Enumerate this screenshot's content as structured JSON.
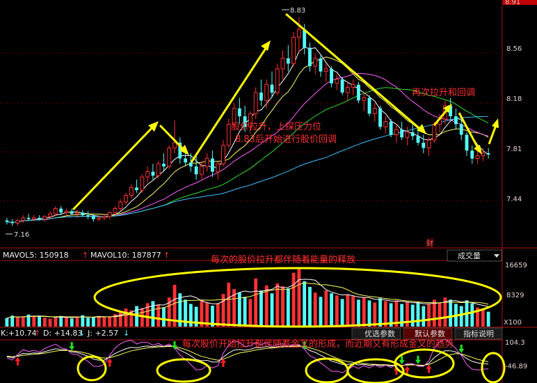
{
  "chart_data": [
    {
      "type": "candlestick",
      "panel": "price",
      "y_ticks": [
        "8.56",
        "8.18",
        "7.81",
        "7.44"
      ],
      "top_tick": "8.91",
      "high_label": "8.83",
      "low_label": "7.16",
      "ylim": [
        7.14,
        8.92
      ],
      "candles": [
        [
          7.29,
          7.31,
          7.26,
          7.28
        ],
        [
          7.28,
          7.3,
          7.25,
          7.27
        ],
        [
          7.27,
          7.3,
          7.25,
          7.29
        ],
        [
          7.29,
          7.33,
          7.27,
          7.31
        ],
        [
          7.31,
          7.34,
          7.29,
          7.3
        ],
        [
          7.3,
          7.33,
          7.28,
          7.31
        ],
        [
          7.31,
          7.33,
          7.29,
          7.3
        ],
        [
          7.3,
          7.33,
          7.28,
          7.32
        ],
        [
          7.32,
          7.36,
          7.3,
          7.34
        ],
        [
          7.34,
          7.4,
          7.32,
          7.38
        ],
        [
          7.38,
          7.4,
          7.33,
          7.35
        ],
        [
          7.35,
          7.38,
          7.32,
          7.36
        ],
        [
          7.36,
          7.38,
          7.33,
          7.34
        ],
        [
          7.34,
          7.37,
          7.31,
          7.35
        ],
        [
          7.35,
          7.37,
          7.32,
          7.33
        ],
        [
          7.33,
          7.36,
          7.3,
          7.32
        ],
        [
          7.32,
          7.34,
          7.28,
          7.3
        ],
        [
          7.3,
          7.33,
          7.28,
          7.31
        ],
        [
          7.31,
          7.34,
          7.29,
          7.32
        ],
        [
          7.32,
          7.36,
          7.3,
          7.35
        ],
        [
          7.35,
          7.4,
          7.33,
          7.38
        ],
        [
          7.38,
          7.45,
          7.36,
          7.43
        ],
        [
          7.43,
          7.5,
          7.41,
          7.48
        ],
        [
          7.48,
          7.56,
          7.46,
          7.54
        ],
        [
          7.54,
          7.6,
          7.5,
          7.52
        ],
        [
          7.52,
          7.64,
          7.5,
          7.62
        ],
        [
          7.62,
          7.7,
          7.58,
          7.66
        ],
        [
          7.66,
          7.72,
          7.6,
          7.63
        ],
        [
          7.63,
          7.74,
          7.61,
          7.72
        ],
        [
          7.72,
          7.8,
          7.66,
          7.7
        ],
        [
          7.7,
          7.86,
          7.68,
          7.84
        ],
        [
          7.84,
          8.05,
          7.8,
          7.88
        ],
        [
          7.88,
          7.92,
          7.72,
          7.76
        ],
        [
          7.76,
          7.84,
          7.7,
          7.73
        ],
        [
          7.73,
          7.8,
          7.66,
          7.7
        ],
        [
          7.7,
          7.78,
          7.6,
          7.64
        ],
        [
          7.64,
          7.74,
          7.6,
          7.7
        ],
        [
          7.7,
          7.8,
          7.66,
          7.76
        ],
        [
          7.76,
          7.82,
          7.62,
          7.66
        ],
        [
          7.66,
          7.74,
          7.6,
          7.72
        ],
        [
          7.72,
          7.9,
          7.7,
          7.86
        ],
        [
          7.86,
          8.06,
          7.84,
          8.02
        ],
        [
          8.02,
          8.18,
          7.98,
          8.14
        ],
        [
          8.14,
          8.22,
          8.02,
          8.08
        ],
        [
          8.08,
          8.16,
          7.96,
          8.0
        ],
        [
          8.0,
          8.12,
          7.95,
          8.1
        ],
        [
          8.1,
          8.3,
          8.06,
          8.26
        ],
        [
          8.26,
          8.36,
          8.16,
          8.2
        ],
        [
          8.2,
          8.36,
          8.14,
          8.32
        ],
        [
          8.32,
          8.42,
          8.22,
          8.26
        ],
        [
          8.26,
          8.48,
          8.24,
          8.44
        ],
        [
          8.44,
          8.58,
          8.36,
          8.52
        ],
        [
          8.52,
          8.62,
          8.42,
          8.48
        ],
        [
          8.48,
          8.72,
          8.46,
          8.68
        ],
        [
          8.68,
          8.83,
          8.56,
          8.74
        ],
        [
          8.74,
          8.78,
          8.55,
          8.6
        ],
        [
          8.6,
          8.64,
          8.42,
          8.46
        ],
        [
          8.46,
          8.56,
          8.4,
          8.52
        ],
        [
          8.52,
          8.55,
          8.38,
          8.42
        ],
        [
          8.42,
          8.48,
          8.34,
          8.44
        ],
        [
          8.44,
          8.46,
          8.3,
          8.33
        ],
        [
          8.33,
          8.4,
          8.28,
          8.36
        ],
        [
          8.36,
          8.38,
          8.24,
          8.26
        ],
        [
          8.26,
          8.34,
          8.2,
          8.3
        ],
        [
          8.3,
          8.36,
          8.24,
          8.32
        ],
        [
          8.32,
          8.34,
          8.18,
          8.2
        ],
        [
          8.2,
          8.26,
          8.12,
          8.22
        ],
        [
          8.22,
          8.24,
          8.08,
          8.1
        ],
        [
          8.1,
          8.18,
          8.04,
          8.14
        ],
        [
          8.14,
          8.16,
          7.98,
          8.0
        ],
        [
          8.0,
          8.08,
          7.95,
          8.04
        ],
        [
          8.04,
          8.06,
          7.92,
          7.94
        ],
        [
          7.94,
          8.02,
          7.88,
          7.98
        ],
        [
          7.98,
          8.04,
          7.9,
          7.92
        ],
        [
          7.92,
          8.0,
          7.86,
          7.96
        ],
        [
          7.96,
          8.02,
          7.9,
          7.93
        ],
        [
          7.93,
          7.98,
          7.86,
          7.88
        ],
        [
          7.88,
          7.94,
          7.8,
          7.84
        ],
        [
          7.84,
          7.92,
          7.78,
          7.9
        ],
        [
          7.9,
          8.04,
          7.88,
          8.02
        ],
        [
          8.02,
          8.1,
          7.96,
          8.06
        ],
        [
          8.06,
          8.2,
          8.02,
          8.16
        ],
        [
          8.16,
          8.22,
          8.04,
          8.08
        ],
        [
          8.08,
          8.14,
          7.98,
          8.02
        ],
        [
          8.02,
          8.06,
          7.9,
          7.94
        ],
        [
          7.94,
          7.96,
          7.78,
          7.82
        ],
        [
          7.82,
          7.86,
          7.72,
          7.76
        ],
        [
          7.76,
          7.82,
          7.72,
          7.78
        ],
        [
          7.78,
          7.84,
          7.74,
          7.8
        ],
        [
          7.8,
          7.84,
          7.76,
          7.79
        ]
      ]
    },
    {
      "type": "bar",
      "panel": "volume",
      "y_ticks": [
        "16659",
        "8329",
        "X100"
      ],
      "ylim": [
        0,
        17500
      ],
      "series": [
        {
          "name": "MAVOL5",
          "display": "MAVOL5: 150918",
          "values": [
            2400,
            3100,
            2600,
            2900,
            3400,
            2800,
            3100,
            2500,
            2200,
            2700,
            3000,
            2600,
            2300,
            2800,
            3200,
            2500,
            2700,
            3000,
            2600,
            2900,
            3500,
            4200,
            5100,
            4600,
            5800,
            5200,
            6600,
            7200,
            6100,
            5400,
            8200,
            11800,
            9400,
            7600,
            6400,
            5600,
            7400,
            6800,
            5900,
            6600,
            9200,
            12400,
            10600,
            9600,
            8400,
            7800,
            13600,
            10200,
            11600,
            9400,
            12200,
            11400,
            10800,
            15200,
            16659,
            12800,
            11200,
            9600,
            8400,
            10200,
            9400,
            8800,
            7800,
            9000,
            8600,
            7600,
            8200,
            7400,
            6800,
            8000,
            7200,
            6600,
            7400,
            6400,
            7000,
            6200,
            6800,
            5800,
            6400,
            7600,
            6800,
            8200,
            7600,
            6400,
            5800,
            7400,
            6600,
            5400,
            4800,
            4200
          ]
        }
      ]
    },
    {
      "type": "line",
      "panel": "kdj",
      "y_ticks": [
        "104.3",
        "-46.89"
      ],
      "series": [
        {
          "name": "K",
          "display": "K:+10.74"
        },
        {
          "name": "D",
          "display": "D: +14.83"
        },
        {
          "name": "J",
          "display": "J: +2.57"
        }
      ]
    }
  ],
  "annotations": {
    "rally_text_1": "股价拉升，上探压力位",
    "rally_text_2": "8.83后开始进行股价回调",
    "again_text": "再次拉升和回调",
    "volume_text": "每次的股价拉升都伴随着能量的释放",
    "kdj_text": "每次股价开始拉升都伴随着金叉的形成，而近期又有形成金叉的趋势",
    "cai": "财"
  },
  "ui": {
    "indicator_select": "成交量",
    "tab_youxuan": "优选参数",
    "tab_moren": "默认参数",
    "tab_shuoming": "指标说明"
  },
  "colors": {
    "up": "#ff3232",
    "down": "#54fcfc",
    "annotation": "#ff3030",
    "arrow": "#ffff00"
  }
}
